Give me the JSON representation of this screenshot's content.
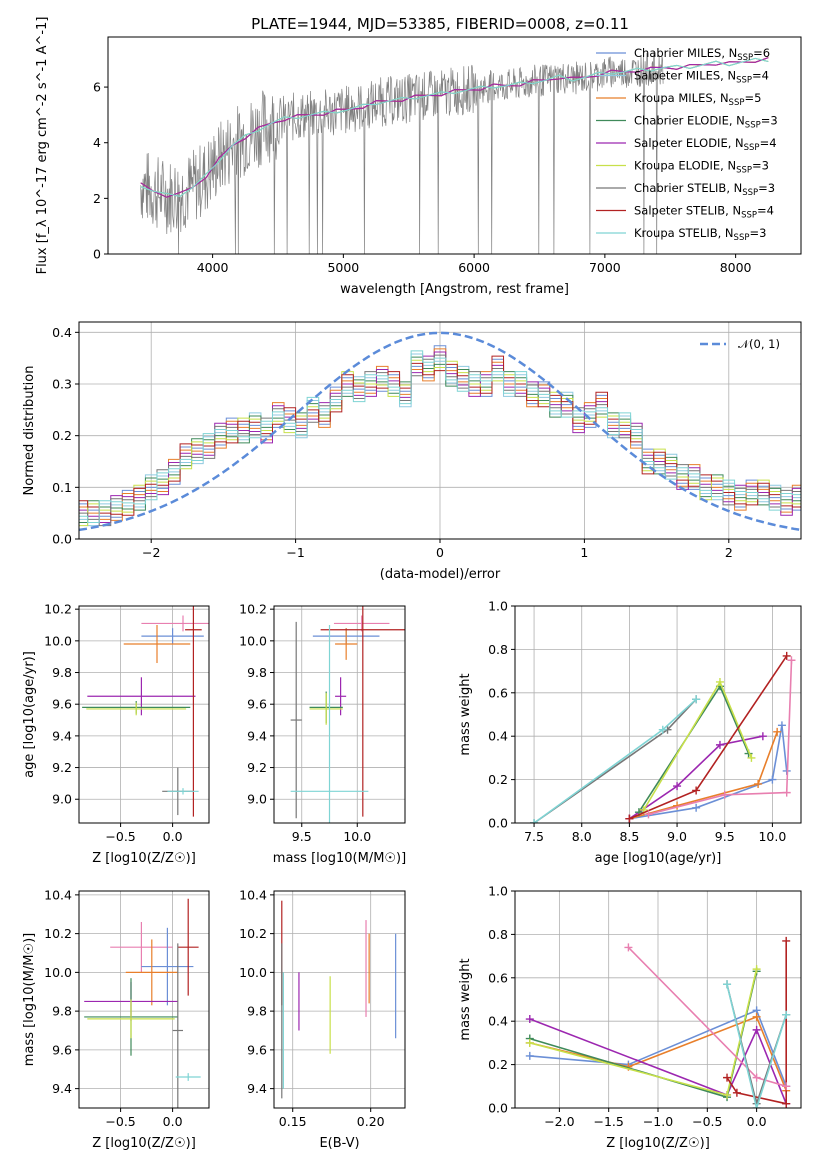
{
  "title": "PLATE=1944, MJD=53385, FIBERID=0008, z=0.11",
  "colors": {
    "chabrier_miles": "#6b8fd6",
    "salpeter_miles": "#8ec9e0",
    "kroupa_miles": "#e87f2b",
    "chabrier_elodie": "#3f8a5a",
    "salpeter_elodie": "#9c27b0",
    "kroupa_elodie": "#c8e04a",
    "chabrier_stelib": "#777777",
    "salpeter_stelib": "#b22222",
    "kroupa_stelib": "#7fd4d4",
    "extra_pink": "#e87fb0",
    "normal_curve": "#5b8bd9",
    "data_gray": "#808080"
  },
  "legend": {
    "entries": [
      {
        "text": "Chabrier MILES, N",
        "sub": "SSP",
        "tail": "=6"
      },
      {
        "text": "Salpeter MILES, N",
        "sub": "SSP",
        "tail": "=4"
      },
      {
        "text": "Kroupa MILES, N",
        "sub": "SSP",
        "tail": "=5"
      },
      {
        "text": "Chabrier ELODIE, N",
        "sub": "SSP",
        "tail": "=3"
      },
      {
        "text": "Salpeter ELODIE, N",
        "sub": "SSP",
        "tail": "=4"
      },
      {
        "text": "Kroupa ELODIE, N",
        "sub": "SSP",
        "tail": "=3"
      },
      {
        "text": "Chabrier STELIB, N",
        "sub": "SSP",
        "tail": "=3"
      },
      {
        "text": "Salpeter STELIB, N",
        "sub": "SSP",
        "tail": "=4"
      },
      {
        "text": "Kroupa STELIB, N",
        "sub": "SSP",
        "tail": "=3"
      }
    ]
  },
  "chart_data": [
    {
      "type": "line",
      "name": "spectrum",
      "xlabel": "wavelength [Angstrom, rest frame]",
      "ylabel": "Flux [f_λ 10^-17 erg cm^-2 s^-1 A^-1]",
      "xlim": [
        3200,
        8500
      ],
      "ylim": [
        0,
        7.8
      ],
      "xticks": [
        4000,
        5000,
        6000,
        7000,
        8000
      ],
      "yticks": [
        0,
        2,
        4,
        6
      ],
      "model_x": [
        3450,
        3550,
        3650,
        3750,
        3850,
        3950,
        4050,
        4150,
        4250,
        4350,
        4450,
        4550,
        4650,
        4750,
        4850,
        4950,
        5050,
        5150,
        5250,
        5350,
        5450,
        5550,
        5650,
        5750,
        5850,
        5950,
        6050,
        6150,
        6250,
        6350,
        6450,
        6550,
        6650,
        6750,
        6850,
        6950,
        7050,
        7150,
        7250,
        7350,
        7450,
        7550,
        7650,
        7750,
        7850,
        7950,
        8050,
        8150,
        8250
      ],
      "model_y": [
        2.5,
        2.25,
        2.1,
        2.15,
        2.4,
        2.8,
        3.4,
        3.9,
        4.2,
        4.5,
        4.7,
        4.85,
        4.95,
        5.0,
        5.05,
        5.15,
        5.2,
        5.3,
        5.45,
        5.5,
        5.55,
        5.65,
        5.7,
        5.75,
        5.85,
        5.9,
        5.95,
        6.05,
        6.05,
        6.1,
        6.2,
        6.25,
        6.35,
        6.3,
        6.35,
        6.45,
        6.55,
        6.55,
        6.6,
        6.65,
        6.7,
        6.7,
        6.75,
        6.8,
        6.85,
        6.85,
        6.9,
        6.95,
        7.0
      ]
    },
    {
      "type": "bar",
      "name": "residual-histogram",
      "xlabel": "(data-model)/error",
      "ylabel": "Normed distribution",
      "xlim": [
        -2.5,
        2.5
      ],
      "ylim": [
        0,
        0.42
      ],
      "xticks": [
        -2,
        -1,
        0,
        1,
        2
      ],
      "yticks": [
        0.0,
        0.1,
        0.2,
        0.3,
        0.4
      ],
      "legend": "𝒩(0, 1)",
      "bin_width": 0.1,
      "base_values": [
        0.05,
        0.05,
        0.05,
        0.05,
        0.06,
        0.07,
        0.08,
        0.1,
        0.11,
        0.13,
        0.16,
        0.17,
        0.18,
        0.2,
        0.21,
        0.21,
        0.22,
        0.21,
        0.24,
        0.23,
        0.22,
        0.25,
        0.24,
        0.27,
        0.3,
        0.29,
        0.3,
        0.31,
        0.3,
        0.28,
        0.34,
        0.33,
        0.35,
        0.32,
        0.31,
        0.3,
        0.3,
        0.33,
        0.3,
        0.3,
        0.28,
        0.28,
        0.26,
        0.26,
        0.23,
        0.24,
        0.26,
        0.22,
        0.22,
        0.2,
        0.15,
        0.15,
        0.14,
        0.12,
        0.12,
        0.1,
        0.1,
        0.09,
        0.08,
        0.09,
        0.09,
        0.08,
        0.07,
        0.08,
        0.07,
        0.06,
        0.07,
        0.06,
        0.05,
        0.05,
        0.05,
        0.05,
        0.05,
        0.05,
        0.04
      ]
    },
    {
      "type": "scatter",
      "name": "age-vs-Z",
      "xlabel": "Z [log10(Z/Z☉)]",
      "ylabel": "age [log10(age/yr)]",
      "xlim": [
        -0.9,
        0.35
      ],
      "ylim": [
        8.85,
        10.22
      ],
      "xticks": [
        -0.5,
        0.0
      ],
      "yticks": [
        9.0,
        9.2,
        9.4,
        9.6,
        9.8,
        10.0,
        10.2
      ],
      "points": [
        {
          "c": "extra_pink",
          "x": 0.1,
          "y": 10.11,
          "xe": 0.4,
          "ye": 0.05
        },
        {
          "c": "chabrier_miles",
          "x": 0.0,
          "y": 10.03,
          "xe": 0.3,
          "ye": 0.05
        },
        {
          "c": "kroupa_miles",
          "x": -0.15,
          "y": 9.98,
          "xe": 0.32,
          "ye": 0.12
        },
        {
          "c": "salpeter_elodie",
          "x": -0.3,
          "y": 9.65,
          "xe": 0.52,
          "ye": 0.12
        },
        {
          "c": "chabrier_elodie",
          "x": -0.35,
          "y": 9.58,
          "xe": 0.52,
          "ye": 0.04
        },
        {
          "c": "kroupa_elodie",
          "x": -0.35,
          "y": 9.57,
          "xe": 0.48,
          "ye": 0.04
        },
        {
          "c": "salpeter_stelib",
          "x": 0.2,
          "y": 10.07,
          "xe": 0.08,
          "ye": 1.18
        },
        {
          "c": "chabrier_stelib",
          "x": 0.05,
          "y": 9.05,
          "xe": 0.15,
          "ye": 0.15
        },
        {
          "c": "kroupa_stelib",
          "x": 0.1,
          "y": 9.05,
          "xe": 0.15,
          "ye": 0.02
        }
      ]
    },
    {
      "type": "scatter",
      "name": "age-vs-mass",
      "xlabel": "mass [log10(M/M☉)]",
      "ylabel": "",
      "xlim": [
        9.25,
        10.43
      ],
      "ylim": [
        8.85,
        10.22
      ],
      "xticks": [
        9.5,
        10.0
      ],
      "yticks": [
        9.0,
        9.2,
        9.4,
        9.6,
        9.8,
        10.0,
        10.2
      ],
      "points": [
        {
          "c": "extra_pink",
          "x": 10.04,
          "y": 10.11,
          "xe": 0.25,
          "ye": 0.05
        },
        {
          "c": "chabrier_miles",
          "x": 9.9,
          "y": 10.03,
          "xe": 0.3,
          "ye": 0.05
        },
        {
          "c": "kroupa_miles",
          "x": 9.9,
          "y": 9.98,
          "xe": 0.1,
          "ye": 0.1
        },
        {
          "c": "salpeter_elodie",
          "x": 9.85,
          "y": 9.65,
          "xe": 0.05,
          "ye": 0.12
        },
        {
          "c": "chabrier_elodie",
          "x": 9.72,
          "y": 9.58,
          "xe": 0.15,
          "ye": 0.1
        },
        {
          "c": "kroupa_elodie",
          "x": 9.72,
          "y": 9.57,
          "xe": 0.15,
          "ye": 0.1
        },
        {
          "c": "salpeter_stelib",
          "x": 10.05,
          "y": 10.07,
          "xe": 0.38,
          "ye": 1.18
        },
        {
          "c": "chabrier_stelib",
          "x": 9.45,
          "y": 9.5,
          "xe": 0.05,
          "ye": 0.62
        },
        {
          "c": "kroupa_stelib",
          "x": 9.75,
          "y": 9.05,
          "xe": 0.35,
          "ye": 1.05
        }
      ]
    },
    {
      "type": "line",
      "name": "mass-weight-vs-age",
      "xlabel": "age [log10(age/yr)]",
      "ylabel": "mass weight",
      "xlim": [
        7.3,
        10.3
      ],
      "ylim": [
        0,
        1.0
      ],
      "xticks": [
        7.5,
        8.0,
        8.5,
        9.0,
        9.5,
        10.0
      ],
      "yticks": [
        0.0,
        0.2,
        0.4,
        0.6,
        0.8,
        1.0
      ],
      "series": [
        {
          "c": "chabrier_miles",
          "x": [
            8.5,
            9.2,
            10.0,
            10.1,
            10.15
          ],
          "y": [
            0.02,
            0.07,
            0.2,
            0.45,
            0.24
          ]
        },
        {
          "c": "kroupa_miles",
          "x": [
            8.5,
            9.0,
            9.85,
            10.05
          ],
          "y": [
            0.02,
            0.08,
            0.18,
            0.42
          ]
        },
        {
          "c": "salpeter_elodie",
          "x": [
            8.5,
            9.0,
            9.45,
            9.9
          ],
          "y": [
            0.02,
            0.17,
            0.36,
            0.4
          ]
        },
        {
          "c": "chabrier_elodie",
          "x": [
            8.6,
            9.45,
            9.75
          ],
          "y": [
            0.05,
            0.63,
            0.32
          ]
        },
        {
          "c": "kroupa_elodie",
          "x": [
            8.65,
            9.45,
            9.78
          ],
          "y": [
            0.06,
            0.65,
            0.3
          ]
        },
        {
          "c": "salpeter_stelib",
          "x": [
            8.5,
            9.2,
            10.15
          ],
          "y": [
            0.02,
            0.15,
            0.77
          ]
        },
        {
          "c": "extra_pink",
          "x": [
            8.7,
            9.5,
            10.15,
            10.2
          ],
          "y": [
            0.04,
            0.13,
            0.14,
            0.75
          ]
        },
        {
          "c": "chabrier_stelib",
          "x": [
            7.5,
            8.9,
            9.2
          ],
          "y": [
            0.0,
            0.43,
            0.57
          ]
        },
        {
          "c": "kroupa_stelib",
          "x": [
            7.5,
            8.85,
            9.2
          ],
          "y": [
            0.0,
            0.43,
            0.57
          ]
        }
      ]
    },
    {
      "type": "scatter",
      "name": "mass-vs-Z",
      "xlabel": "Z [log10(Z/Z☉)]",
      "ylabel": "mass [log10(M/M☉)]",
      "xlim": [
        -0.9,
        0.35
      ],
      "ylim": [
        9.3,
        10.42
      ],
      "xticks": [
        -0.5,
        0.0
      ],
      "yticks": [
        9.4,
        9.6,
        9.8,
        10.0,
        10.2,
        10.4
      ],
      "points": [
        {
          "c": "extra_pink",
          "x": -0.3,
          "y": 10.13,
          "xe": 0.3,
          "ye": 0.13
        },
        {
          "c": "chabrier_miles",
          "x": -0.05,
          "y": 10.03,
          "xe": 0.25,
          "ye": 0.2
        },
        {
          "c": "kroupa_miles",
          "x": -0.2,
          "y": 10.0,
          "xe": 0.25,
          "ye": 0.17
        },
        {
          "c": "salpeter_elodie",
          "x": -0.4,
          "y": 9.85,
          "xe": 0.45,
          "ye": 0.1
        },
        {
          "c": "chabrier_elodie",
          "x": -0.4,
          "y": 9.77,
          "xe": 0.45,
          "ye": 0.2
        },
        {
          "c": "kroupa_elodie",
          "x": -0.4,
          "y": 9.76,
          "xe": 0.42,
          "ye": 0.1
        },
        {
          "c": "salpeter_stelib",
          "x": 0.15,
          "y": 10.13,
          "xe": 0.1,
          "ye": 0.25
        },
        {
          "c": "chabrier_stelib",
          "x": 0.05,
          "y": 9.7,
          "xe": 0.05,
          "ye": 0.45
        },
        {
          "c": "kroupa_stelib",
          "x": 0.15,
          "y": 9.46,
          "xe": 0.12,
          "ye": 0.02
        }
      ]
    },
    {
      "type": "scatter",
      "name": "mass-vs-EBV",
      "xlabel": "E(B-V)",
      "ylabel": "",
      "xlim": [
        0.138,
        0.222
      ],
      "ylim": [
        9.3,
        10.42
      ],
      "xticks": [
        0.15,
        0.2
      ],
      "yticks": [
        9.4,
        9.6,
        9.8,
        10.0,
        10.2,
        10.4
      ],
      "points": [
        {
          "c": "salpeter_stelib",
          "x": 0.143,
          "y": 10.1,
          "xe": 0,
          "ye": 0.27
        },
        {
          "c": "chabrier_stelib",
          "x": 0.143,
          "y": 9.75,
          "xe": 0,
          "ye": 0.4
        },
        {
          "c": "kroupa_stelib",
          "x": 0.144,
          "y": 9.7,
          "xe": 0,
          "ye": 0.3
        },
        {
          "c": "salpeter_elodie",
          "x": 0.154,
          "y": 9.85,
          "xe": 0,
          "ye": 0.15
        },
        {
          "c": "kroupa_elodie",
          "x": 0.174,
          "y": 9.78,
          "xe": 0,
          "ye": 0.2
        },
        {
          "c": "extra_pink",
          "x": 0.197,
          "y": 10.02,
          "xe": 0,
          "ye": 0.25
        },
        {
          "c": "kroupa_miles",
          "x": 0.199,
          "y": 10.02,
          "xe": 0,
          "ye": 0.18
        },
        {
          "c": "chabrier_miles",
          "x": 0.216,
          "y": 9.93,
          "xe": 0,
          "ye": 0.27
        }
      ]
    },
    {
      "type": "line",
      "name": "mass-weight-vs-Z",
      "xlabel": "Z [log10(Z/Z☉)]",
      "ylabel": "mass weight",
      "xlim": [
        -2.45,
        0.45
      ],
      "ylim": [
        0,
        1.0
      ],
      "xticks": [
        -2.0,
        -1.5,
        -1.0,
        -0.5,
        0.0
      ],
      "yticks": [
        0.0,
        0.2,
        0.4,
        0.6,
        0.8,
        1.0
      ],
      "series": [
        {
          "c": "chabrier_miles",
          "x": [
            -2.3,
            -1.3,
            0.0,
            0.3
          ],
          "y": [
            0.24,
            0.2,
            0.45,
            0.1
          ]
        },
        {
          "c": "kroupa_miles",
          "x": [
            -2.3,
            -1.3,
            0.0,
            0.3
          ],
          "y": [
            0.3,
            0.19,
            0.42,
            0.08
          ]
        },
        {
          "c": "salpeter_elodie",
          "x": [
            -2.3,
            -0.3,
            0.0,
            0.3
          ],
          "y": [
            0.41,
            0.06,
            0.36,
            0.02
          ]
        },
        {
          "c": "chabrier_elodie",
          "x": [
            -2.3,
            -0.3,
            0.0
          ],
          "y": [
            0.32,
            0.05,
            0.63
          ]
        },
        {
          "c": "kroupa_elodie",
          "x": [
            -2.3,
            -0.3,
            0.0
          ],
          "y": [
            0.3,
            0.06,
            0.64
          ]
        },
        {
          "c": "salpeter_stelib",
          "x": [
            -0.3,
            -0.2,
            0.3,
            0.3
          ],
          "y": [
            0.14,
            0.07,
            0.02,
            0.77
          ]
        },
        {
          "c": "extra_pink",
          "x": [
            -1.3,
            0.0,
            0.3
          ],
          "y": [
            0.74,
            0.14,
            0.1
          ]
        },
        {
          "c": "chabrier_stelib",
          "x": [
            -0.3,
            0.0,
            0.3
          ],
          "y": [
            0.57,
            0.02,
            0.43
          ]
        },
        {
          "c": "kroupa_stelib",
          "x": [
            -0.3,
            0.0,
            0.3
          ],
          "y": [
            0.57,
            0.0,
            0.43
          ]
        }
      ]
    }
  ]
}
